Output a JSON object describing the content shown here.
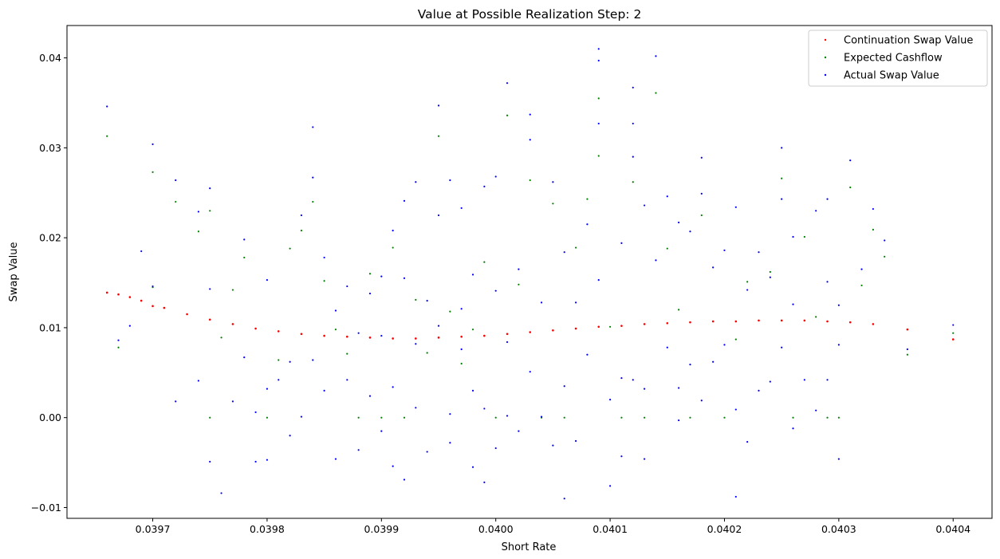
{
  "chart_data": {
    "type": "scatter",
    "title": "Value at Possible Realization Step: 2",
    "xlabel": "Short Rate",
    "ylabel": "Swap Value",
    "xlim": [
      0.039625,
      0.040434
    ],
    "ylim": [
      -0.0112,
      0.0436
    ],
    "x_ticks": [
      0.0397,
      0.0398,
      0.0399,
      0.04,
      0.0401,
      0.0402,
      0.0403,
      0.0404
    ],
    "x_tick_labels": [
      "0.0397",
      "0.0398",
      "0.0399",
      "0.0400",
      "0.0401",
      "0.0402",
      "0.0403",
      "0.0404"
    ],
    "y_ticks": [
      -0.01,
      0.0,
      0.01,
      0.02,
      0.03,
      0.04
    ],
    "y_tick_labels": [
      "−0.01",
      "0.00",
      "0.01",
      "0.02",
      "0.03",
      "0.04"
    ],
    "grid": false,
    "legend_position": "top-right",
    "series": [
      {
        "name": "Continuation Swap Value",
        "color": "#ff0000",
        "marker": "dot",
        "note_shape": "smooth curve",
        "points": [
          [
            0.03966,
            0.0139
          ],
          [
            0.03967,
            0.0137
          ],
          [
            0.03968,
            0.0134
          ],
          [
            0.03969,
            0.013
          ],
          [
            0.0397,
            0.0124
          ],
          [
            0.03971,
            0.0122
          ],
          [
            0.03973,
            0.0115
          ],
          [
            0.03975,
            0.0109
          ],
          [
            0.03977,
            0.0104
          ],
          [
            0.03979,
            0.0099
          ],
          [
            0.03981,
            0.0096
          ],
          [
            0.03983,
            0.0093
          ],
          [
            0.03985,
            0.0091
          ],
          [
            0.03987,
            0.009
          ],
          [
            0.03989,
            0.0089
          ],
          [
            0.03991,
            0.0088
          ],
          [
            0.03993,
            0.0088
          ],
          [
            0.03995,
            0.0089
          ],
          [
            0.03997,
            0.009
          ],
          [
            0.03999,
            0.0091
          ],
          [
            0.04001,
            0.0093
          ],
          [
            0.04003,
            0.0095
          ],
          [
            0.04005,
            0.0097
          ],
          [
            0.04007,
            0.0099
          ],
          [
            0.04009,
            0.0101
          ],
          [
            0.04011,
            0.0102
          ],
          [
            0.04013,
            0.0104
          ],
          [
            0.04015,
            0.0105
          ],
          [
            0.04017,
            0.0106
          ],
          [
            0.04019,
            0.0107
          ],
          [
            0.04021,
            0.0107
          ],
          [
            0.04023,
            0.0108
          ],
          [
            0.04025,
            0.0108
          ],
          [
            0.04027,
            0.0108
          ],
          [
            0.04029,
            0.0107
          ],
          [
            0.04031,
            0.0106
          ],
          [
            0.04033,
            0.0104
          ],
          [
            0.04036,
            0.0098
          ],
          [
            0.0404,
            0.0087
          ]
        ]
      },
      {
        "name": "Expected Cashflow",
        "color": "#008000",
        "marker": "dot",
        "points": [
          [
            0.03966,
            0.0313
          ],
          [
            0.03967,
            0.0078
          ],
          [
            0.0397,
            0.0145
          ],
          [
            0.0397,
            0.0273
          ],
          [
            0.03972,
            0.024
          ],
          [
            0.03974,
            0.0207
          ],
          [
            0.03975,
            0.023
          ],
          [
            0.03975,
            0.0
          ],
          [
            0.03976,
            0.0089
          ],
          [
            0.03977,
            0.0142
          ],
          [
            0.03978,
            0.0178
          ],
          [
            0.0398,
            0.0
          ],
          [
            0.03981,
            0.0064
          ],
          [
            0.03982,
            0.0188
          ],
          [
            0.03983,
            0.0208
          ],
          [
            0.03984,
            0.024
          ],
          [
            0.03985,
            0.0152
          ],
          [
            0.03986,
            0.0098
          ],
          [
            0.03987,
            0.0071
          ],
          [
            0.03988,
            0.0
          ],
          [
            0.03989,
            0.016
          ],
          [
            0.0399,
            0.0
          ],
          [
            0.03991,
            0.0189
          ],
          [
            0.03992,
            0.0
          ],
          [
            0.03993,
            0.0131
          ],
          [
            0.03994,
            0.0072
          ],
          [
            0.03995,
            0.0313
          ],
          [
            0.03996,
            0.0118
          ],
          [
            0.03997,
            0.006
          ],
          [
            0.03998,
            0.0098
          ],
          [
            0.03999,
            0.0173
          ],
          [
            0.04,
            0.0
          ],
          [
            0.04001,
            0.0336
          ],
          [
            0.04002,
            0.0148
          ],
          [
            0.04003,
            0.0264
          ],
          [
            0.04004,
            0.0
          ],
          [
            0.04005,
            0.0238
          ],
          [
            0.04006,
            0.0
          ],
          [
            0.04007,
            0.0189
          ],
          [
            0.04008,
            0.0243
          ],
          [
            0.04009,
            0.0355
          ],
          [
            0.04009,
            0.0291
          ],
          [
            0.0401,
            0.0101
          ],
          [
            0.04011,
            0.0
          ],
          [
            0.04012,
            0.0262
          ],
          [
            0.04013,
            0.0
          ],
          [
            0.04014,
            0.0361
          ],
          [
            0.04015,
            0.0188
          ],
          [
            0.04016,
            0.012
          ],
          [
            0.04017,
            0.0
          ],
          [
            0.04018,
            0.0225
          ],
          [
            0.0402,
            0.0
          ],
          [
            0.04021,
            0.0087
          ],
          [
            0.04022,
            0.0151
          ],
          [
            0.04024,
            0.0162
          ],
          [
            0.04025,
            0.0266
          ],
          [
            0.04026,
            0.0
          ],
          [
            0.04027,
            0.0201
          ],
          [
            0.04028,
            0.0112
          ],
          [
            0.04029,
            0.0
          ],
          [
            0.0403,
            0.0
          ],
          [
            0.04031,
            0.0256
          ],
          [
            0.04032,
            0.0147
          ],
          [
            0.04033,
            0.0209
          ],
          [
            0.04034,
            0.0179
          ],
          [
            0.04036,
            0.007
          ],
          [
            0.0404,
            0.0094
          ]
        ]
      },
      {
        "name": "Actual Swap Value",
        "color": "#0000ff",
        "marker": "dot",
        "points": [
          [
            0.03966,
            0.0346
          ],
          [
            0.03967,
            0.0086
          ],
          [
            0.03968,
            0.0102
          ],
          [
            0.03969,
            0.0185
          ],
          [
            0.0397,
            0.0146
          ],
          [
            0.0397,
            0.0304
          ],
          [
            0.03972,
            0.0264
          ],
          [
            0.03972,
            0.0018
          ],
          [
            0.03974,
            0.0229
          ],
          [
            0.03974,
            0.0041
          ],
          [
            0.03975,
            0.0143
          ],
          [
            0.03975,
            0.0255
          ],
          [
            0.03975,
            -0.0049
          ],
          [
            0.03976,
            -0.0084
          ],
          [
            0.03977,
            0.0018
          ],
          [
            0.03978,
            0.0198
          ],
          [
            0.03978,
            0.0067
          ],
          [
            0.03979,
            0.0006
          ],
          [
            0.03979,
            -0.0049
          ],
          [
            0.0398,
            0.0153
          ],
          [
            0.0398,
            0.0032
          ],
          [
            0.0398,
            -0.0047
          ],
          [
            0.03981,
            0.0042
          ],
          [
            0.03982,
            0.0062
          ],
          [
            0.03982,
            -0.002
          ],
          [
            0.03983,
            0.0225
          ],
          [
            0.03983,
            0.0001
          ],
          [
            0.03984,
            0.0064
          ],
          [
            0.03984,
            0.0323
          ],
          [
            0.03984,
            0.0267
          ],
          [
            0.03985,
            0.0178
          ],
          [
            0.03985,
            0.003
          ],
          [
            0.03986,
            0.0119
          ],
          [
            0.03986,
            -0.0046
          ],
          [
            0.03987,
            0.0146
          ],
          [
            0.03987,
            0.0042
          ],
          [
            0.03988,
            0.0094
          ],
          [
            0.03988,
            -0.0036
          ],
          [
            0.03989,
            0.0138
          ],
          [
            0.03989,
            0.0024
          ],
          [
            0.0399,
            0.0157
          ],
          [
            0.0399,
            0.0091
          ],
          [
            0.0399,
            -0.0015
          ],
          [
            0.03991,
            0.0208
          ],
          [
            0.03991,
            0.0034
          ],
          [
            0.03991,
            -0.0054
          ],
          [
            0.03992,
            0.0155
          ],
          [
            0.03992,
            0.0241
          ],
          [
            0.03992,
            -0.0069
          ],
          [
            0.03993,
            0.0262
          ],
          [
            0.03993,
            0.0082
          ],
          [
            0.03993,
            0.0011
          ],
          [
            0.03994,
            0.013
          ],
          [
            0.03994,
            -0.0038
          ],
          [
            0.03995,
            0.0225
          ],
          [
            0.03995,
            0.0347
          ],
          [
            0.03995,
            0.0102
          ],
          [
            0.03996,
            0.0264
          ],
          [
            0.03996,
            0.0004
          ],
          [
            0.03996,
            -0.0028
          ],
          [
            0.03997,
            0.0121
          ],
          [
            0.03997,
            0.0233
          ],
          [
            0.03997,
            0.0076
          ],
          [
            0.03998,
            0.0159
          ],
          [
            0.03998,
            0.003
          ],
          [
            0.03998,
            -0.0055
          ],
          [
            0.03999,
            0.0257
          ],
          [
            0.03999,
            0.001
          ],
          [
            0.03999,
            -0.0072
          ],
          [
            0.04,
            0.0141
          ],
          [
            0.04,
            0.0268
          ],
          [
            0.04,
            -0.0034
          ],
          [
            0.04001,
            0.0372
          ],
          [
            0.04001,
            0.0084
          ],
          [
            0.04001,
            0.0002
          ],
          [
            0.04002,
            0.0165
          ],
          [
            0.04002,
            -0.0015
          ],
          [
            0.04003,
            0.0337
          ],
          [
            0.04003,
            0.0309
          ],
          [
            0.04003,
            0.0051
          ],
          [
            0.04004,
            0.0128
          ],
          [
            0.04004,
            0.0001
          ],
          [
            0.04005,
            0.0262
          ],
          [
            0.04005,
            -0.0031
          ],
          [
            0.04006,
            0.0184
          ],
          [
            0.04006,
            0.0035
          ],
          [
            0.04006,
            -0.009
          ],
          [
            0.04007,
            0.0128
          ],
          [
            0.04007,
            -0.0026
          ],
          [
            0.04008,
            0.0215
          ],
          [
            0.04008,
            0.007
          ],
          [
            0.04009,
            0.041
          ],
          [
            0.04009,
            0.0397
          ],
          [
            0.04009,
            0.0327
          ],
          [
            0.04009,
            0.0153
          ],
          [
            0.0401,
            0.002
          ],
          [
            0.0401,
            -0.0076
          ],
          [
            0.04011,
            0.0194
          ],
          [
            0.04011,
            0.0044
          ],
          [
            0.04011,
            -0.0043
          ],
          [
            0.04012,
            0.0367
          ],
          [
            0.04012,
            0.0327
          ],
          [
            0.04012,
            0.029
          ],
          [
            0.04012,
            0.0042
          ],
          [
            0.04013,
            0.0236
          ],
          [
            0.04013,
            -0.0046
          ],
          [
            0.04013,
            0.0032
          ],
          [
            0.04014,
            0.0402
          ],
          [
            0.04014,
            0.0175
          ],
          [
            0.04015,
            0.0246
          ],
          [
            0.04015,
            0.0078
          ],
          [
            0.04016,
            0.0217
          ],
          [
            0.04016,
            0.0033
          ],
          [
            0.04016,
            -0.0003
          ],
          [
            0.04017,
            0.0207
          ],
          [
            0.04017,
            0.0059
          ],
          [
            0.04018,
            0.0289
          ],
          [
            0.04018,
            0.0249
          ],
          [
            0.04018,
            0.0019
          ],
          [
            0.04019,
            0.0167
          ],
          [
            0.04019,
            0.0062
          ],
          [
            0.0402,
            0.0186
          ],
          [
            0.0402,
            0.0081
          ],
          [
            0.04021,
            0.0234
          ],
          [
            0.04021,
            0.0009
          ],
          [
            0.04021,
            -0.0088
          ],
          [
            0.04022,
            0.0142
          ],
          [
            0.04022,
            -0.0027
          ],
          [
            0.04023,
            0.0184
          ],
          [
            0.04023,
            0.003
          ],
          [
            0.04024,
            0.0156
          ],
          [
            0.04024,
            0.004
          ],
          [
            0.04025,
            0.03
          ],
          [
            0.04025,
            0.0243
          ],
          [
            0.04025,
            0.0078
          ],
          [
            0.04026,
            0.0201
          ],
          [
            0.04026,
            0.0126
          ],
          [
            0.04026,
            -0.0012
          ],
          [
            0.04027,
            0.0042
          ],
          [
            0.04028,
            0.023
          ],
          [
            0.04028,
            0.0008
          ],
          [
            0.04029,
            0.0243
          ],
          [
            0.04029,
            0.0151
          ],
          [
            0.04029,
            0.0042
          ],
          [
            0.0403,
            0.0125
          ],
          [
            0.0403,
            0.0081
          ],
          [
            0.0403,
            -0.0046
          ],
          [
            0.04031,
            0.0286
          ],
          [
            0.04032,
            0.0165
          ],
          [
            0.04033,
            0.0232
          ],
          [
            0.04034,
            0.0197
          ],
          [
            0.04036,
            0.0076
          ],
          [
            0.0404,
            0.0103
          ]
        ]
      }
    ]
  }
}
